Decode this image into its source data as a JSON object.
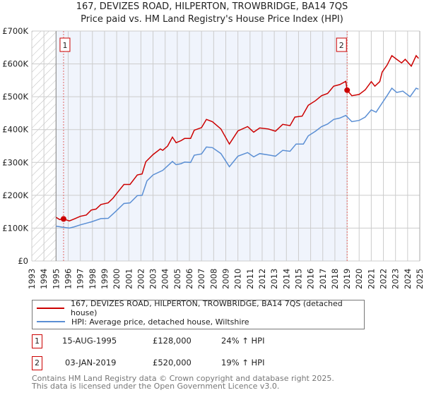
{
  "title_line1": "167, DEVIZES ROAD, HILPERTON, TROWBRIDGE, BA14 7QS",
  "title_line2": "Price paid vs. HM Land Registry's House Price Index (HPI)",
  "chart_data": {
    "type": "line",
    "title": "167, DEVIZES ROAD, HILPERTON, TROWBRIDGE, BA14 7QS — Price paid vs. HM Land Registry's House Price Index (HPI)",
    "xlim": [
      1993,
      2025
    ],
    "ylim": [
      0,
      700000
    ],
    "x_ticks": [
      "1993",
      "1994",
      "1995",
      "1996",
      "1997",
      "1998",
      "1999",
      "2000",
      "2001",
      "2002",
      "2003",
      "2004",
      "2005",
      "2006",
      "2007",
      "2008",
      "2009",
      "2010",
      "2011",
      "2012",
      "2013",
      "2014",
      "2015",
      "2016",
      "2017",
      "2018",
      "2019",
      "2020",
      "2021",
      "2022",
      "2023",
      "2024",
      "2025"
    ],
    "y_ticks": [
      {
        "v": 0,
        "label": "£0"
      },
      {
        "v": 100000,
        "label": "£100K"
      },
      {
        "v": 200000,
        "label": "£200K"
      },
      {
        "v": 300000,
        "label": "£300K"
      },
      {
        "v": 400000,
        "label": "£400K"
      },
      {
        "v": 500000,
        "label": "£500K"
      },
      {
        "v": 600000,
        "label": "£600K"
      },
      {
        "v": 700000,
        "label": "£700K"
      }
    ],
    "grid": true,
    "hatched_range": [
      1993,
      1995
    ],
    "shaded_range": [
      1995,
      2019.01
    ],
    "series": [
      {
        "name": "167, DEVIZES ROAD, HILPERTON, TROWBRIDGE, BA14 7QS (detached house)",
        "color": "#cc0000",
        "x": [
          1995.0,
          1995.3,
          1995.6,
          1996.1,
          1996.5,
          1997.0,
          1997.5,
          1997.9,
          1998.3,
          1998.7,
          1999.3,
          1999.7,
          2000.1,
          2000.6,
          2001.1,
          2001.7,
          2002.1,
          2002.4,
          2003.0,
          2003.6,
          2003.8,
          2004.2,
          2004.6,
          2004.9,
          2005.3,
          2005.6,
          2006.1,
          2006.4,
          2007.0,
          2007.4,
          2007.9,
          2008.6,
          2009.3,
          2010.0,
          2010.8,
          2011.3,
          2011.8,
          2012.5,
          2013.1,
          2013.7,
          2014.3,
          2014.7,
          2015.3,
          2015.8,
          2016.4,
          2016.9,
          2017.4,
          2017.9,
          2018.4,
          2018.9,
          2019.01,
          2019.4,
          2020.0,
          2020.5,
          2021.0,
          2021.3,
          2021.7,
          2021.9,
          2022.3,
          2022.7,
          2023.1,
          2023.5,
          2023.8,
          2024.3,
          2024.7,
          2024.9
        ],
        "y": [
          133000,
          126000,
          128000,
          122000,
          128000,
          136000,
          140000,
          155000,
          158000,
          172000,
          177000,
          191000,
          210000,
          233000,
          233000,
          262000,
          265000,
          302000,
          324000,
          341000,
          337000,
          350000,
          377000,
          360000,
          366000,
          373000,
          373000,
          398000,
          406000,
          431000,
          424000,
          402000,
          356000,
          396000,
          409000,
          392000,
          405000,
          402000,
          395000,
          416000,
          412000,
          438000,
          441000,
          474000,
          488000,
          503000,
          510000,
          532000,
          537000,
          547000,
          520000,
          503000,
          507000,
          521000,
          546000,
          532000,
          546000,
          575000,
          596000,
          625000,
          614000,
          603000,
          614000,
          593000,
          625000,
          617000
        ]
      },
      {
        "name": "HPI: Average price, detached house, Wiltshire",
        "color": "#5b8fd4",
        "x": [
          1995.0,
          1995.5,
          1996.1,
          1996.5,
          1997.0,
          1997.9,
          1998.7,
          1999.3,
          1999.9,
          2000.6,
          2001.1,
          2001.7,
          2002.1,
          2002.5,
          2003.0,
          2003.8,
          2004.6,
          2004.9,
          2005.3,
          2005.6,
          2006.1,
          2006.4,
          2007.0,
          2007.4,
          2007.9,
          2008.6,
          2009.3,
          2010.0,
          2010.8,
          2011.3,
          2011.8,
          2012.5,
          2013.1,
          2013.7,
          2014.3,
          2014.8,
          2015.4,
          2015.8,
          2016.4,
          2016.9,
          2017.4,
          2017.9,
          2018.4,
          2018.9,
          2019.4,
          2020.0,
          2020.5,
          2021.0,
          2021.4,
          2021.9,
          2022.3,
          2022.7,
          2023.1,
          2023.6,
          2024.2,
          2024.7,
          2024.9
        ],
        "y": [
          106000,
          103000,
          100000,
          104000,
          110000,
          119000,
          129000,
          130000,
          150000,
          175000,
          177000,
          199000,
          200000,
          244000,
          262000,
          276000,
          303000,
          293000,
          296000,
          301000,
          300000,
          322000,
          326000,
          347000,
          345000,
          327000,
          287000,
          319000,
          330000,
          317000,
          327000,
          323000,
          319000,
          337000,
          334000,
          356000,
          356000,
          381000,
          395000,
          409000,
          417000,
          431000,
          435000,
          443000,
          424000,
          428000,
          438000,
          460000,
          453000,
          481000,
          503000,
          526000,
          513000,
          517000,
          500000,
          526000,
          523000
        ]
      }
    ],
    "sales": [
      {
        "label": "1",
        "x": 1995.62,
        "y": 128000
      },
      {
        "label": "2",
        "x": 2019.01,
        "y": 520000
      }
    ]
  },
  "legend": {
    "red_label": "167, DEVIZES ROAD, HILPERTON, TROWBRIDGE, BA14 7QS (detached house)",
    "blue_label": "HPI: Average price, detached house, Wiltshire"
  },
  "transactions": [
    {
      "num": "1",
      "date": "15-AUG-1995",
      "price": "£128,000",
      "hpi": "24% ↑ HPI"
    },
    {
      "num": "2",
      "date": "03-JAN-2019",
      "price": "£520,000",
      "hpi": "19% ↑ HPI"
    }
  ],
  "footer_line1": "Contains HM Land Registry data © Crown copyright and database right 2025.",
  "footer_line2": "This data is licensed under the Open Government Licence v3.0."
}
